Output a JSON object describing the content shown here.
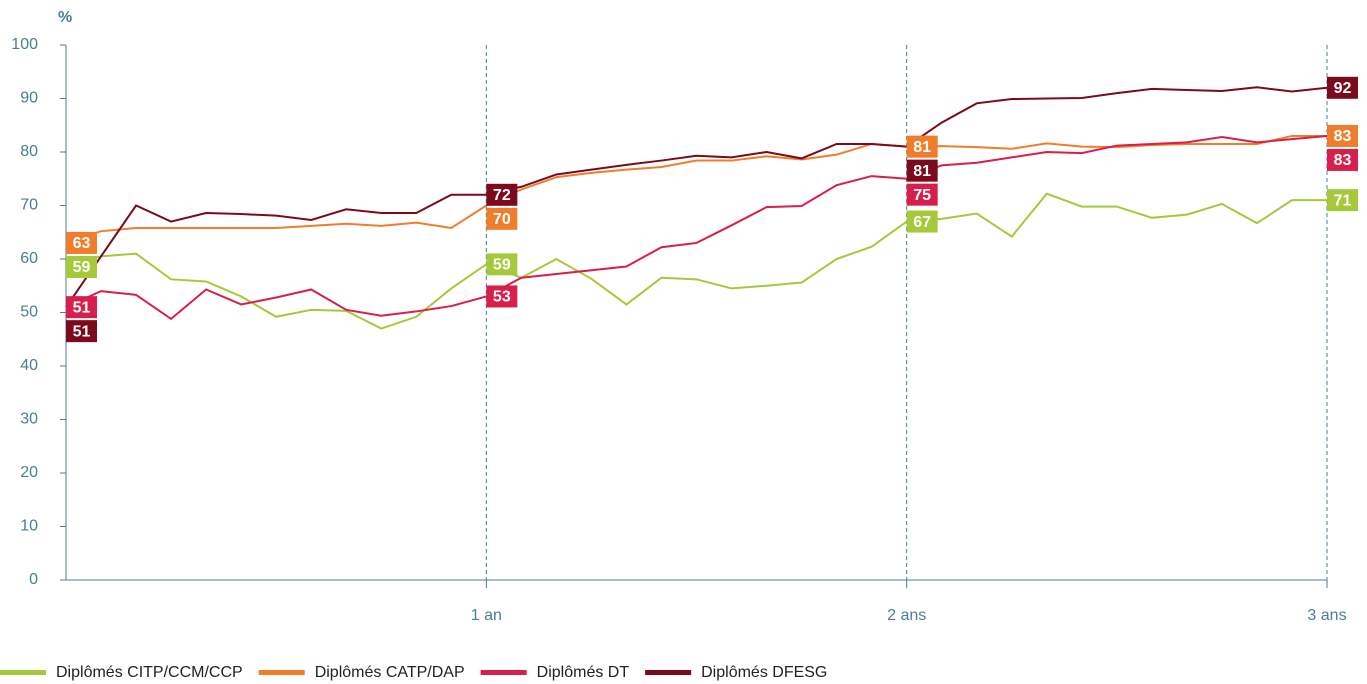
{
  "chart_data": {
    "type": "line",
    "y_label": "%",
    "x": [
      0,
      1,
      2,
      3,
      4,
      5,
      6,
      7,
      8,
      9,
      10,
      11,
      12,
      13,
      14,
      15,
      16,
      17,
      18,
      19,
      20,
      21,
      22,
      23,
      24,
      25,
      26,
      27,
      28,
      29,
      30,
      31,
      32,
      33,
      34,
      35,
      36
    ],
    "xlim": [
      0,
      36
    ],
    "xticks": [
      {
        "value": 12,
        "label": "1 an"
      },
      {
        "value": 24,
        "label": "2 ans"
      },
      {
        "value": 36,
        "label": "3 ans"
      }
    ],
    "ylim": [
      0,
      100
    ],
    "yticks": [
      0,
      10,
      20,
      30,
      40,
      50,
      60,
      70,
      80,
      90,
      100
    ],
    "series": [
      {
        "name": "Diplômés CITP/CCM/CCP",
        "color": "#a5c93a",
        "values": [
          59,
          60.5,
          61,
          56.2,
          55.8,
          53,
          49.2,
          50.5,
          50.3,
          47,
          49.2,
          54.5,
          59,
          56.5,
          60,
          56.3,
          51.5,
          56.5,
          56.2,
          54.5,
          55,
          55.6,
          60,
          62.3,
          67,
          67.5,
          68.5,
          64.2,
          72.2,
          69.8,
          69.8,
          67.7,
          68.3,
          70.3,
          66.7,
          71,
          71
        ]
      },
      {
        "name": "Diplômés CATP/DAP",
        "color": "#f07d2b",
        "values": [
          63,
          65.2,
          65.8,
          65.8,
          65.8,
          65.8,
          65.8,
          66.2,
          66.6,
          66.2,
          66.8,
          65.8,
          70,
          73,
          75.3,
          76.1,
          76.7,
          77.2,
          78.4,
          78.4,
          79.2,
          78.6,
          79.5,
          81.5,
          81,
          81.1,
          80.9,
          80.6,
          81.6,
          81,
          80.9,
          81.3,
          81.5,
          81.5,
          81.5,
          83,
          83
        ]
      },
      {
        "name": "Diplômés DT",
        "color": "#d81e4a",
        "values": [
          51,
          54,
          53.3,
          48.8,
          54.3,
          51.5,
          52.8,
          54.3,
          50.5,
          49.4,
          50.2,
          51.2,
          53,
          56.5,
          57.2,
          57.9,
          58.6,
          62.2,
          63,
          66.3,
          69.7,
          69.9,
          73.8,
          75.5,
          75,
          77.5,
          78,
          79,
          80,
          79.8,
          81.2,
          81.5,
          81.8,
          82.8,
          81.8,
          82.4,
          83
        ]
      },
      {
        "name": "Diplômés DFESG",
        "color": "#7a0a1c",
        "values": [
          51,
          60.5,
          70,
          67,
          68.6,
          68.4,
          68.1,
          67.3,
          69.3,
          68.6,
          68.6,
          72,
          72,
          73.5,
          75.8,
          76.7,
          77.6,
          78.4,
          79.3,
          79,
          80,
          78.8,
          81.5,
          81.5,
          81,
          85.5,
          89.1,
          89.9,
          90,
          90.1,
          91,
          91.8,
          91.6,
          91.4,
          92.1,
          91.3,
          92
        ]
      }
    ]
  }
}
